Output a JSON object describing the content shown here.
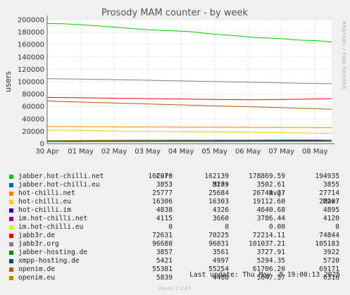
{
  "chart_data": {
    "type": "line",
    "title": "Prosody MAM counter - by week",
    "ylabel": "users",
    "xlabel": "",
    "ylim": [
      0,
      200000
    ],
    "yticks": [
      0,
      20000,
      40000,
      60000,
      80000,
      100000,
      120000,
      140000,
      160000,
      180000,
      200000
    ],
    "ytick_labels": [
      "0",
      "20000",
      "40000",
      "60000",
      "80000",
      "100000",
      "120000",
      "140000",
      "160000",
      "180000",
      "200000"
    ],
    "x_ticks": [
      "30 Apr",
      "01 May",
      "02 May",
      "03 May",
      "04 May",
      "05 May",
      "06 May",
      "07 May",
      "08 May"
    ],
    "grid": true,
    "side_text": "RRDTOOL / TOBI OETIKER",
    "columns": [
      "Cur:",
      "Min:",
      "Avg:",
      "Max:"
    ],
    "series": [
      {
        "name": "jabber.hot-chilli.net",
        "color": "#00cc00",
        "cur": "162970",
        "min": "162139",
        "avg": "178869.59",
        "max": "194935",
        "values": [
          194000,
          193500,
          192000,
          190500,
          188500,
          186500,
          184500,
          183000,
          182000,
          181000,
          178000,
          176000,
          174000,
          171500,
          170500,
          169000,
          167000,
          166500,
          164000
        ]
      },
      {
        "name": "jabber.hot-chilli.eu",
        "color": "#0066b3",
        "cur": "3853",
        "min": "3279",
        "avg": "3502.61",
        "max": "3855",
        "values": [
          3300,
          3300,
          3300,
          3400,
          3400,
          3400,
          3400,
          3500,
          3500,
          3500,
          3500,
          3500,
          3500,
          3600,
          3600,
          3600,
          3800,
          3800,
          3850
        ]
      },
      {
        "name": "hot-chilli.net",
        "color": "#ff8000",
        "cur": "25777",
        "min": "25684",
        "avg": "26749.27",
        "max": "27714",
        "values": [
          27600,
          27500,
          27400,
          27300,
          27200,
          27100,
          27000,
          26900,
          26800,
          26700,
          26600,
          26500,
          26400,
          26300,
          26200,
          26100,
          26000,
          25900,
          25800
        ]
      },
      {
        "name": "hot-chilli.eu",
        "color": "#ffcc00",
        "cur": "16306",
        "min": "16303",
        "avg": "19112.60",
        "max": "22207",
        "values": [
          22100,
          21800,
          21500,
          21000,
          20600,
          20200,
          19800,
          19500,
          19300,
          19100,
          18900,
          18700,
          18400,
          18100,
          17800,
          17500,
          17200,
          16800,
          16400
        ]
      },
      {
        "name": "hot-chilli.im",
        "color": "#330099",
        "cur": "4838",
        "min": "4326",
        "avg": "4640.68",
        "max": "4895",
        "values": [
          4400,
          4450,
          4500,
          4550,
          4600,
          4600,
          4650,
          4650,
          4650,
          4650,
          4700,
          4700,
          4700,
          4750,
          4750,
          4800,
          4850,
          4850,
          4840
        ]
      },
      {
        "name": "im.hot-chilli.net",
        "color": "#990099",
        "cur": "4115",
        "min": "3660",
        "avg": "3786.44",
        "max": "4120",
        "values": [
          3700,
          3700,
          3700,
          3700,
          3700,
          3750,
          3750,
          3750,
          3750,
          3800,
          3800,
          3800,
          3850,
          3850,
          3900,
          3950,
          4000,
          4050,
          4110
        ]
      },
      {
        "name": "im.hot-chilli.eu",
        "color": "#ccff00",
        "cur": "0",
        "min": "0",
        "avg": "0.00",
        "max": "0",
        "values": [
          0,
          0,
          0,
          0,
          0,
          0,
          0,
          0,
          0,
          0,
          0,
          0,
          0,
          0,
          0,
          0,
          0,
          0,
          0
        ]
      },
      {
        "name": "jabb3r.de",
        "color": "#ff0000",
        "cur": "72631",
        "min": "70225",
        "avg": "72214.11",
        "max": "74844",
        "values": [
          74500,
          74300,
          74000,
          73700,
          73300,
          73000,
          72700,
          72400,
          72100,
          71800,
          71500,
          71200,
          71000,
          70800,
          71000,
          71300,
          71700,
          72100,
          72600
        ]
      },
      {
        "name": "jabb3r.org",
        "color": "#808080",
        "cur": "96680",
        "min": "96031",
        "avg": "101037.21",
        "max": "105183",
        "values": [
          104800,
          104500,
          104200,
          103800,
          103400,
          103000,
          102500,
          102000,
          101500,
          101000,
          100500,
          100000,
          99500,
          99000,
          98500,
          98000,
          97500,
          97000,
          96700
        ]
      },
      {
        "name": "jabber-hosting.de",
        "color": "#008f00",
        "cur": "3857",
        "min": "3561",
        "avg": "3727.91",
        "max": "3922",
        "values": [
          3600,
          3620,
          3640,
          3660,
          3680,
          3700,
          3700,
          3720,
          3740,
          3750,
          3760,
          3780,
          3800,
          3820,
          3840,
          3860,
          3880,
          3900,
          3860
        ]
      },
      {
        "name": "xmpp-hosting.de",
        "color": "#00487d",
        "cur": "5421",
        "min": "4997",
        "avg": "5294.35",
        "max": "5720",
        "values": [
          5000,
          5050,
          5100,
          5150,
          5200,
          5200,
          5250,
          5250,
          5300,
          5300,
          5350,
          5350,
          5400,
          5400,
          5450,
          5500,
          5600,
          5700,
          5420
        ]
      },
      {
        "name": "openim.de",
        "color": "#b35a00",
        "cur": "55381",
        "min": "55254",
        "avg": "61706.20",
        "max": "69171",
        "values": [
          68800,
          68000,
          67200,
          66500,
          65800,
          65000,
          64300,
          63500,
          62800,
          62000,
          61300,
          60600,
          60000,
          59300,
          58600,
          57900,
          57200,
          56400,
          55400
        ]
      },
      {
        "name": "openim.eu",
        "color": "#b38f00",
        "cur": "5839",
        "min": "4488",
        "avg": "5647.57",
        "max": "6316",
        "values": [
          4600,
          4900,
          5200,
          5400,
          5500,
          5600,
          5650,
          5700,
          5750,
          5800,
          5850,
          5900,
          5950,
          6000,
          6100,
          6200,
          6300,
          6200,
          5840
        ]
      }
    ]
  },
  "footer": {
    "last_update": "Last update: Thu May  8 19:00:13 2025",
    "version": "Munin 2.0.67"
  }
}
